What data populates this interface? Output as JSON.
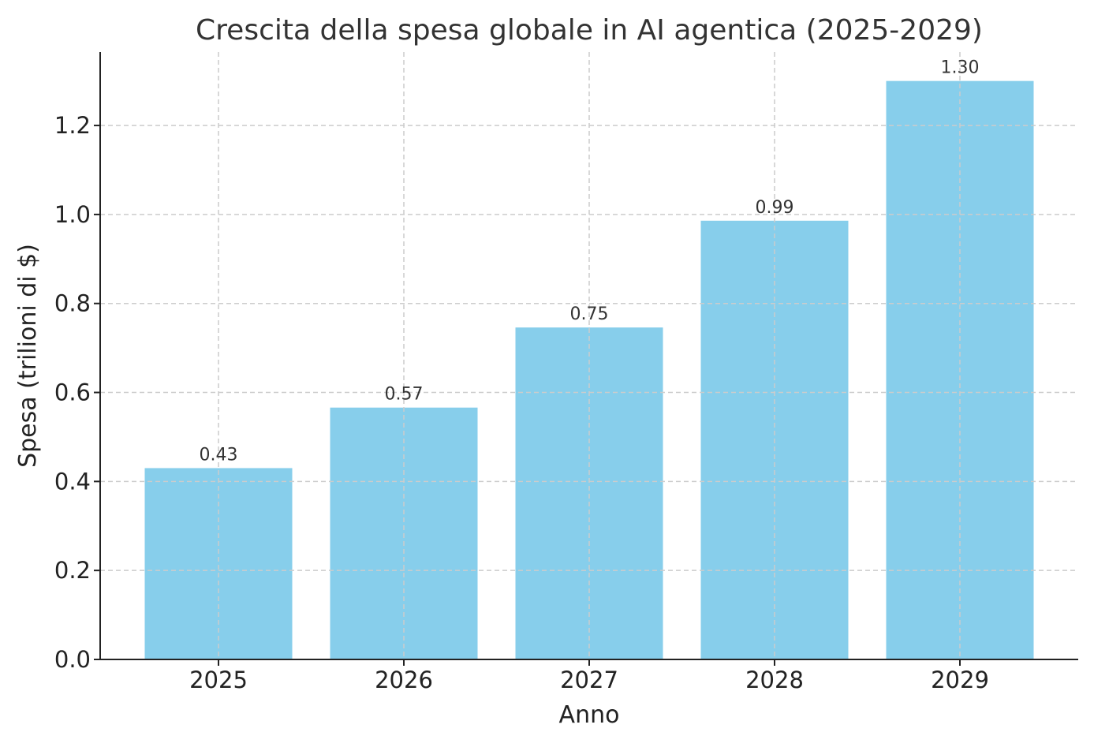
{
  "chart_data": {
    "type": "bar",
    "title": "Crescita della spesa globale in AI agentica (2025-2029)",
    "xlabel": "Anno",
    "ylabel": "Spesa (trilioni di $)",
    "categories": [
      "2025",
      "2026",
      "2027",
      "2028",
      "2029"
    ],
    "values": [
      0.43,
      0.566,
      0.746,
      0.986,
      1.3
    ],
    "data_labels": [
      "0.43",
      "0.57",
      "0.75",
      "0.99",
      "1.30"
    ],
    "ylim": [
      0,
      1.365
    ],
    "yticks": [
      "0.0",
      "0.2",
      "0.4",
      "0.6",
      "0.8",
      "1.0",
      "1.2"
    ],
    "grid": true,
    "bar_color": "#87CEEB",
    "legend": "none"
  }
}
